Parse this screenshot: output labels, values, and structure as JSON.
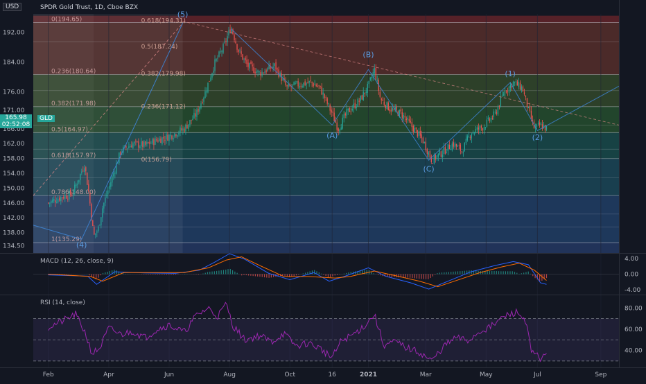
{
  "header": {
    "currency": "USD",
    "title": "SPDR Gold Trust, 1D, Cboe BZX",
    "symbol_tag": "GLD",
    "last_price": "165.98",
    "countdown": "02:52:08"
  },
  "colors": {
    "background": "#131722",
    "up": "#26a69a",
    "down": "#ef5350",
    "grid": "#1f2433",
    "wave": "#3d7ec9",
    "macd": "#2962ff",
    "signal": "#ff6d00",
    "rsi": "#9c27b0"
  },
  "chart_data": [
    {
      "type": "candlestick",
      "title": "SPDR Gold Trust, 1D, Cboe BZX",
      "ylim": [
        132.5,
        197
      ],
      "y_ticks": [
        "192.00",
        "184.00",
        "176.00",
        "171.00",
        "166.00",
        "162.00",
        "158.00",
        "154.00",
        "150.00",
        "146.00",
        "142.00",
        "138.00",
        "134.50"
      ],
      "x_ticks": [
        {
          "label": "Feb",
          "t": 0.0
        },
        {
          "label": "Apr",
          "t": 2.0
        },
        {
          "label": "Jun",
          "t": 4.0
        },
        {
          "label": "Aug",
          "t": 6.0
        },
        {
          "label": "Oct",
          "t": 8.0
        },
        {
          "label": "16",
          "t": 9.4
        },
        {
          "label": "2021",
          "t": 10.6
        },
        {
          "label": "Mar",
          "t": 12.5
        },
        {
          "label": "May",
          "t": 14.5
        },
        {
          "label": "Jul",
          "t": 16.2
        },
        {
          "label": "Sep",
          "t": 18.3
        }
      ],
      "x_range": [
        -0.5,
        18.9
      ],
      "price_path": [
        [
          0.0,
          146
        ],
        [
          0.4,
          147.5
        ],
        [
          0.8,
          148.5
        ],
        [
          1.0,
          152.5
        ],
        [
          1.2,
          156.5
        ],
        [
          1.35,
          148
        ],
        [
          1.5,
          137
        ],
        [
          1.65,
          139
        ],
        [
          1.8,
          145
        ],
        [
          2.0,
          150
        ],
        [
          2.2,
          155
        ],
        [
          2.4,
          160
        ],
        [
          2.8,
          162
        ],
        [
          3.2,
          161.5
        ],
        [
          3.6,
          163
        ],
        [
          4.0,
          164
        ],
        [
          4.5,
          166
        ],
        [
          4.9,
          170
        ],
        [
          5.2,
          176
        ],
        [
          5.5,
          183.5
        ],
        [
          5.8,
          188
        ],
        [
          6.05,
          193.5
        ],
        [
          6.3,
          187
        ],
        [
          6.6,
          183
        ],
        [
          7.0,
          181
        ],
        [
          7.5,
          183
        ],
        [
          7.9,
          177
        ],
        [
          8.3,
          178
        ],
        [
          8.7,
          178.5
        ],
        [
          9.0,
          177
        ],
        [
          9.4,
          170
        ],
        [
          9.6,
          166
        ],
        [
          9.9,
          170.5
        ],
        [
          10.3,
          173.5
        ],
        [
          10.6,
          177.5
        ],
        [
          10.8,
          182
        ],
        [
          11.0,
          174
        ],
        [
          11.3,
          171.5
        ],
        [
          11.7,
          170
        ],
        [
          12.0,
          167
        ],
        [
          12.4,
          163
        ],
        [
          12.7,
          157.5
        ],
        [
          13.1,
          160
        ],
        [
          13.4,
          162
        ],
        [
          13.7,
          160
        ],
        [
          14.0,
          165
        ],
        [
          14.4,
          166.5
        ],
        [
          14.8,
          170
        ],
        [
          15.1,
          176
        ],
        [
          15.4,
          178.5
        ],
        [
          15.7,
          177
        ],
        [
          15.9,
          171
        ],
        [
          16.1,
          166
        ],
        [
          16.3,
          167
        ],
        [
          16.5,
          166
        ]
      ],
      "fib_levels": [
        {
          "ratio": "0",
          "value": 194.65,
          "label": "0(194.65)"
        },
        {
          "ratio": "0.236",
          "value": 180.64,
          "label": "0.236(180.64)"
        },
        {
          "ratio": "0.382",
          "value": 171.98,
          "label": "0.382(171.98)"
        },
        {
          "ratio": "0.5",
          "value": 164.97,
          "label": "0.5(164.97)"
        },
        {
          "ratio": "0.618",
          "value": 157.97,
          "label": "0.618(157.97)"
        },
        {
          "ratio": "0.786",
          "value": 148.0,
          "label": "0.786(148.00)"
        },
        {
          "ratio": "1",
          "value": 135.29,
          "label": "1(135.29)"
        }
      ],
      "fib_levels_2": [
        {
          "ratio": "0.618",
          "value": 194.31,
          "label": "0.618(194.31)"
        },
        {
          "ratio": "0.5",
          "value": 187.24,
          "label": "0.5(187.24)"
        },
        {
          "ratio": "0.382",
          "value": 179.98,
          "label": "0.382(179.98)"
        },
        {
          "ratio": "0.236",
          "value": 171.12,
          "label": "0.236(171.12)"
        },
        {
          "ratio": "0",
          "value": 156.79,
          "label": "0(156.79)"
        }
      ],
      "extra_fib_lines": [
        189.5,
        176.3,
        167.0,
        160.5,
        152.8,
        143.0,
        139.5
      ],
      "wave_labels": [
        {
          "label": "(5)",
          "t": 4.45,
          "y": 196.2
        },
        {
          "label": "(4)",
          "t": 1.1,
          "y": 134.0
        },
        {
          "label": "(A)",
          "t": 9.4,
          "y": 163.5
        },
        {
          "label": "(B)",
          "t": 10.6,
          "y": 185.3
        },
        {
          "label": "(C)",
          "t": 12.6,
          "y": 154.5
        },
        {
          "label": "(1)",
          "t": 15.3,
          "y": 180.2
        },
        {
          "label": "(2)",
          "t": 16.2,
          "y": 163.0
        }
      ],
      "wave_path": [
        [
          1.1,
          136.2
        ],
        [
          4.45,
          194.5
        ]
      ],
      "abc_path": [
        [
          6.05,
          193
        ],
        [
          9.4,
          167
        ],
        [
          10.6,
          182
        ],
        [
          12.6,
          157.5
        ],
        [
          15.3,
          178.5
        ],
        [
          16.2,
          165.5
        ],
        [
          18.9,
          177.5
        ]
      ]
    },
    {
      "type": "line",
      "title": "MACD (12, 26, close, 9)",
      "ylim": [
        -5.2,
        5.2
      ],
      "y_ticks": [
        "4.00",
        "0.00",
        "-4.00"
      ],
      "series": [
        {
          "name": "MACD",
          "values": [
            [
              0,
              -0.2
            ],
            [
              1.3,
              -0.5
            ],
            [
              1.6,
              -2.6
            ],
            [
              2.2,
              0.6
            ],
            [
              3.2,
              0.3
            ],
            [
              4.2,
              0.2
            ],
            [
              5.0,
              1.0
            ],
            [
              5.5,
              3.0
            ],
            [
              6.0,
              5.2
            ],
            [
              6.5,
              3.8
            ],
            [
              7.3,
              0.2
            ],
            [
              8.0,
              -1.4
            ],
            [
              8.8,
              0.4
            ],
            [
              9.3,
              -1.8
            ],
            [
              9.8,
              -0.6
            ],
            [
              10.6,
              1.6
            ],
            [
              11.2,
              -0.6
            ],
            [
              12.0,
              -2.2
            ],
            [
              12.6,
              -3.8
            ],
            [
              13.3,
              -1.6
            ],
            [
              14.0,
              0.6
            ],
            [
              14.8,
              2.2
            ],
            [
              15.4,
              3.2
            ],
            [
              15.9,
              2.4
            ],
            [
              16.3,
              -2.2
            ],
            [
              16.5,
              -2.6
            ]
          ]
        },
        {
          "name": "Signal",
          "values": [
            [
              0,
              0.0
            ],
            [
              1.4,
              -0.6
            ],
            [
              1.8,
              -1.8
            ],
            [
              2.5,
              0.4
            ],
            [
              3.5,
              0.4
            ],
            [
              4.5,
              0.4
            ],
            [
              5.3,
              1.6
            ],
            [
              5.9,
              3.6
            ],
            [
              6.4,
              4.4
            ],
            [
              7.0,
              2.2
            ],
            [
              7.8,
              -0.6
            ],
            [
              8.6,
              -0.6
            ],
            [
              9.5,
              -1.0
            ],
            [
              10.0,
              -0.6
            ],
            [
              10.8,
              0.8
            ],
            [
              11.5,
              -0.4
            ],
            [
              12.3,
              -1.8
            ],
            [
              12.9,
              -3.2
            ],
            [
              13.6,
              -1.4
            ],
            [
              14.3,
              0.4
            ],
            [
              15.0,
              1.8
            ],
            [
              15.6,
              2.8
            ],
            [
              16.1,
              1.0
            ],
            [
              16.5,
              -1.6
            ]
          ]
        }
      ]
    },
    {
      "type": "line",
      "title": "RSI (14, close)",
      "ylim": [
        24,
        92
      ],
      "y_ticks": [
        "80.00",
        "60.00",
        "40.00"
      ],
      "bands": [
        70,
        50,
        30
      ],
      "series": [
        {
          "name": "RSI",
          "values": [
            [
              0,
              62
            ],
            [
              0.5,
              68
            ],
            [
              0.9,
              74
            ],
            [
              1.2,
              58
            ],
            [
              1.45,
              37
            ],
            [
              1.7,
              42
            ],
            [
              2.0,
              61
            ],
            [
              2.4,
              55
            ],
            [
              2.8,
              58
            ],
            [
              3.2,
              52
            ],
            [
              3.6,
              60
            ],
            [
              4.0,
              64
            ],
            [
              4.5,
              57
            ],
            [
              4.9,
              73
            ],
            [
              5.3,
              80
            ],
            [
              5.6,
              72
            ],
            [
              5.9,
              84
            ],
            [
              6.1,
              64
            ],
            [
              6.5,
              50
            ],
            [
              7.0,
              54
            ],
            [
              7.4,
              48
            ],
            [
              7.8,
              56
            ],
            [
              8.2,
              44
            ],
            [
              8.6,
              47
            ],
            [
              9.0,
              42
            ],
            [
              9.4,
              33
            ],
            [
              9.7,
              49
            ],
            [
              10.1,
              55
            ],
            [
              10.5,
              64
            ],
            [
              10.8,
              74
            ],
            [
              11.1,
              45
            ],
            [
              11.5,
              48
            ],
            [
              11.9,
              42
            ],
            [
              12.3,
              38
            ],
            [
              12.7,
              30
            ],
            [
              13.1,
              44
            ],
            [
              13.5,
              52
            ],
            [
              13.9,
              49
            ],
            [
              14.3,
              58
            ],
            [
              14.7,
              63
            ],
            [
              15.1,
              72
            ],
            [
              15.5,
              76
            ],
            [
              15.8,
              69
            ],
            [
              16.0,
              38
            ],
            [
              16.3,
              33
            ],
            [
              16.5,
              35
            ]
          ]
        }
      ]
    }
  ]
}
